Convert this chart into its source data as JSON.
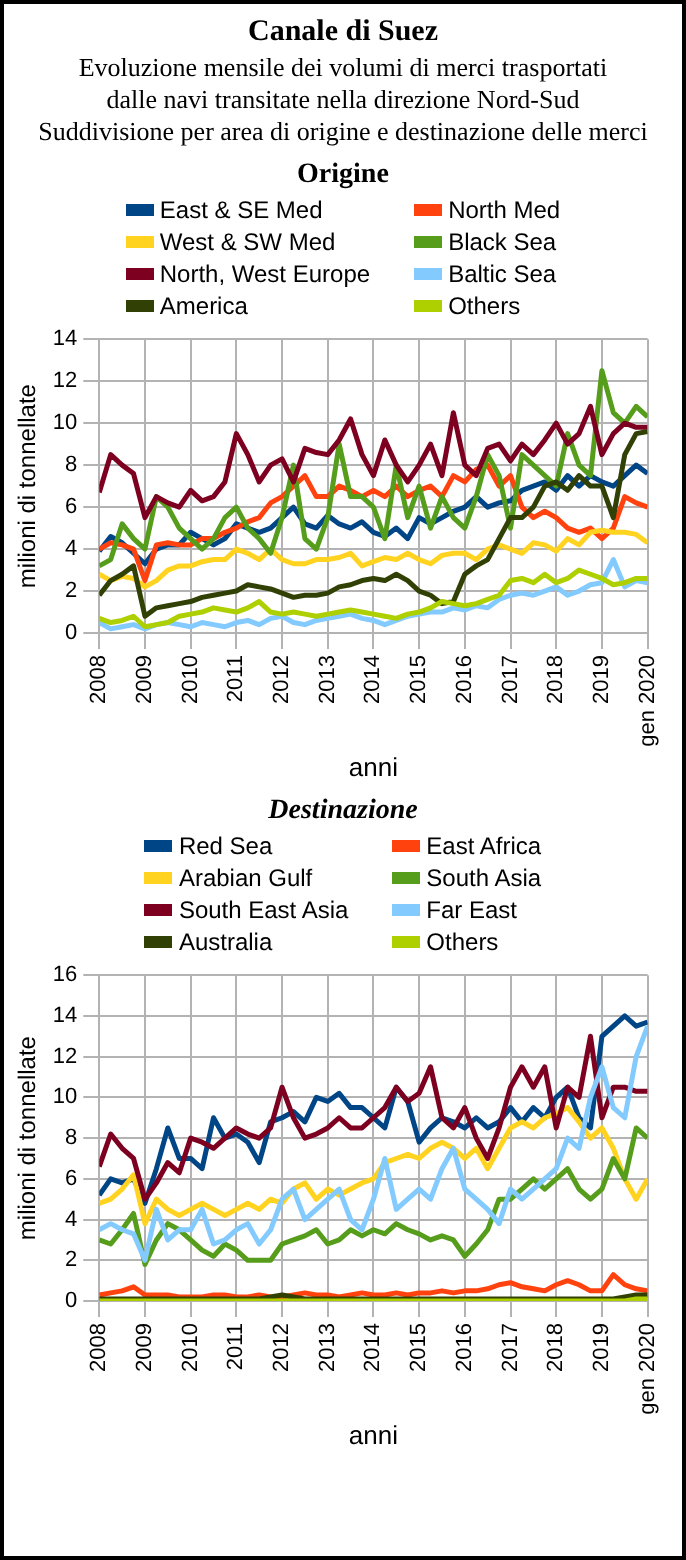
{
  "chart_data": [
    {
      "type": "line",
      "title": "Canale di Suez",
      "subtitle": "Evoluzione mensile dei volumi di merci trasportati\ndalle navi transitate nella direzione Nord-Sud\nSuddivisione per area di origine e destinazione delle merci",
      "legend_title": "Origine",
      "xlabel": "anni",
      "ylabel": "milioni di tonnellate",
      "legend": "top",
      "grid": true,
      "marker": "none",
      "line_style": "solid",
      "x": [
        "2008-01",
        "2008-04",
        "2008-07",
        "2008-10",
        "2009-01",
        "2009-04",
        "2009-07",
        "2009-10",
        "2010-01",
        "2010-04",
        "2010-07",
        "2010-10",
        "2011-01",
        "2011-04",
        "2011-07",
        "2011-10",
        "2012-01",
        "2012-04",
        "2012-07",
        "2012-10",
        "2013-01",
        "2013-04",
        "2013-07",
        "2013-10",
        "2014-01",
        "2014-04",
        "2014-07",
        "2014-10",
        "2015-01",
        "2015-04",
        "2015-07",
        "2015-10",
        "2016-01",
        "2016-04",
        "2016-07",
        "2016-10",
        "2017-01",
        "2017-04",
        "2017-07",
        "2017-10",
        "2018-01",
        "2018-04",
        "2018-07",
        "2018-10",
        "2019-01",
        "2019-04",
        "2019-07",
        "2019-10",
        "2020-01"
      ],
      "xlim": [
        "2008-01",
        "2020-01"
      ],
      "xticks": [
        {
          "value": "2008-01",
          "label": "2008"
        },
        {
          "value": "2009-01",
          "label": "2009"
        },
        {
          "value": "2010-01",
          "label": "2010"
        },
        {
          "value": "2011-01",
          "label": "2011"
        },
        {
          "value": "2012-01",
          "label": "2012"
        },
        {
          "value": "2013-01",
          "label": "2013"
        },
        {
          "value": "2014-01",
          "label": "2014"
        },
        {
          "value": "2015-01",
          "label": "2015"
        },
        {
          "value": "2016-01",
          "label": "2016"
        },
        {
          "value": "2017-01",
          "label": "2017"
        },
        {
          "value": "2018-01",
          "label": "2018"
        },
        {
          "value": "2019-01",
          "label": "2019"
        },
        {
          "value": "2020-01",
          "label": "gen 2020"
        }
      ],
      "ylim": [
        0,
        14
      ],
      "yticks": [
        0,
        2,
        4,
        6,
        8,
        10,
        12,
        14
      ],
      "series": [
        {
          "name": "East & SE Med",
          "color": "#004586",
          "values": [
            3.9,
            4.6,
            4.3,
            3.8,
            3.3,
            4.0,
            4.2,
            4.2,
            4.8,
            4.5,
            4.2,
            4.5,
            5.2,
            5.0,
            4.8,
            5.0,
            5.5,
            6.0,
            5.2,
            5.0,
            5.6,
            5.2,
            5.0,
            5.3,
            4.8,
            4.6,
            5.0,
            4.5,
            5.5,
            5.2,
            5.5,
            5.8,
            6.0,
            6.5,
            6.0,
            6.2,
            6.3,
            6.8,
            7.0,
            7.2,
            6.8,
            7.5,
            7.0,
            7.5,
            7.2,
            7.0,
            7.5,
            8.0,
            7.6
          ]
        },
        {
          "name": "North Med",
          "color": "#ff420e",
          "values": [
            4.0,
            4.3,
            4.2,
            4.0,
            2.5,
            4.2,
            4.3,
            4.2,
            4.2,
            4.5,
            4.5,
            4.8,
            5.0,
            5.3,
            5.5,
            6.2,
            6.5,
            7.0,
            7.5,
            6.5,
            6.5,
            7.0,
            6.8,
            6.5,
            6.8,
            6.5,
            7.0,
            6.5,
            6.8,
            7.0,
            6.5,
            7.5,
            7.2,
            7.8,
            8.0,
            7.0,
            7.5,
            6.0,
            5.5,
            5.8,
            5.5,
            5.0,
            4.8,
            5.0,
            4.5,
            5.0,
            6.5,
            6.2,
            6.0
          ]
        },
        {
          "name": "West & SW Med",
          "color": "#ffd320",
          "values": [
            2.8,
            2.5,
            2.7,
            2.6,
            2.2,
            2.5,
            3.0,
            3.2,
            3.2,
            3.4,
            3.5,
            3.5,
            4.0,
            3.8,
            3.5,
            4.0,
            3.5,
            3.3,
            3.3,
            3.5,
            3.5,
            3.6,
            3.8,
            3.2,
            3.4,
            3.6,
            3.5,
            3.8,
            3.5,
            3.3,
            3.7,
            3.8,
            3.8,
            3.5,
            4.0,
            4.2,
            4.0,
            3.8,
            4.3,
            4.2,
            3.9,
            4.5,
            4.2,
            4.8,
            4.9,
            4.8,
            4.8,
            4.7,
            4.3
          ]
        },
        {
          "name": "Black Sea",
          "color": "#579d1c",
          "values": [
            3.2,
            3.5,
            5.2,
            4.5,
            4.0,
            6.5,
            6.0,
            5.0,
            4.5,
            4.0,
            4.5,
            5.5,
            6.0,
            5.0,
            4.5,
            3.8,
            5.5,
            8.0,
            4.5,
            4.0,
            5.5,
            9.0,
            6.5,
            6.5,
            6.0,
            4.5,
            8.0,
            5.5,
            7.0,
            5.0,
            6.5,
            5.5,
            5.0,
            6.5,
            8.5,
            7.5,
            5.0,
            8.5,
            8.0,
            7.5,
            7.0,
            9.5,
            8.0,
            7.5,
            12.5,
            10.5,
            10.0,
            10.8,
            10.3
          ]
        },
        {
          "name": "North, West Europe",
          "color": "#7e0021",
          "values": [
            6.7,
            8.5,
            8.0,
            7.6,
            5.5,
            6.5,
            6.2,
            6.0,
            6.8,
            6.3,
            6.5,
            7.2,
            9.5,
            8.5,
            7.2,
            8.0,
            8.3,
            7.2,
            8.8,
            8.6,
            8.5,
            9.2,
            10.2,
            8.5,
            7.5,
            9.2,
            8.0,
            7.2,
            8.0,
            9.0,
            7.5,
            10.5,
            8.0,
            7.5,
            8.8,
            9.0,
            8.2,
            9.0,
            8.5,
            9.2,
            10.0,
            9.0,
            9.5,
            10.8,
            8.5,
            9.5,
            10.0,
            9.8,
            9.8
          ]
        },
        {
          "name": "Baltic Sea",
          "color": "#83caff",
          "values": [
            0.5,
            0.2,
            0.3,
            0.4,
            0.2,
            0.4,
            0.5,
            0.4,
            0.3,
            0.5,
            0.4,
            0.3,
            0.5,
            0.6,
            0.4,
            0.7,
            0.8,
            0.5,
            0.4,
            0.6,
            0.7,
            0.8,
            0.9,
            0.7,
            0.6,
            0.4,
            0.6,
            0.8,
            0.9,
            1.0,
            1.0,
            1.2,
            1.1,
            1.3,
            1.2,
            1.6,
            1.8,
            1.9,
            1.8,
            2.0,
            2.2,
            1.8,
            2.0,
            2.3,
            2.4,
            3.5,
            2.2,
            2.5,
            2.4
          ]
        },
        {
          "name": "America",
          "color": "#314004",
          "values": [
            1.8,
            2.5,
            2.8,
            3.2,
            0.8,
            1.2,
            1.3,
            1.4,
            1.5,
            1.7,
            1.8,
            1.9,
            2.0,
            2.3,
            2.2,
            2.1,
            1.9,
            1.7,
            1.8,
            1.8,
            1.9,
            2.2,
            2.3,
            2.5,
            2.6,
            2.5,
            2.8,
            2.5,
            2.0,
            1.8,
            1.4,
            1.5,
            2.8,
            3.2,
            3.5,
            4.5,
            5.5,
            5.5,
            6.0,
            7.0,
            7.2,
            6.8,
            7.5,
            7.0,
            7.0,
            5.5,
            8.5,
            9.5,
            9.6
          ]
        },
        {
          "name": "Others",
          "color": "#aecf00",
          "values": [
            0.7,
            0.5,
            0.6,
            0.8,
            0.3,
            0.4,
            0.5,
            0.8,
            0.9,
            1.0,
            1.2,
            1.1,
            1.0,
            1.2,
            1.5,
            1.0,
            0.9,
            1.0,
            0.9,
            0.8,
            0.9,
            1.0,
            1.1,
            1.0,
            0.9,
            0.8,
            0.7,
            0.9,
            1.0,
            1.2,
            1.5,
            1.4,
            1.3,
            1.4,
            1.6,
            1.8,
            2.5,
            2.6,
            2.4,
            2.8,
            2.4,
            2.6,
            3.0,
            2.8,
            2.6,
            2.3,
            2.4,
            2.6,
            2.6
          ]
        }
      ]
    },
    {
      "type": "line",
      "legend_title": "Destinazione",
      "xlabel": "anni",
      "ylabel": "milioni di tonnellate",
      "legend": "top",
      "grid": true,
      "marker": "none",
      "line_style": "solid",
      "x": [
        "2008-01",
        "2008-04",
        "2008-07",
        "2008-10",
        "2009-01",
        "2009-04",
        "2009-07",
        "2009-10",
        "2010-01",
        "2010-04",
        "2010-07",
        "2010-10",
        "2011-01",
        "2011-04",
        "2011-07",
        "2011-10",
        "2012-01",
        "2012-04",
        "2012-07",
        "2012-10",
        "2013-01",
        "2013-04",
        "2013-07",
        "2013-10",
        "2014-01",
        "2014-04",
        "2014-07",
        "2014-10",
        "2015-01",
        "2015-04",
        "2015-07",
        "2015-10",
        "2016-01",
        "2016-04",
        "2016-07",
        "2016-10",
        "2017-01",
        "2017-04",
        "2017-07",
        "2017-10",
        "2018-01",
        "2018-04",
        "2018-07",
        "2018-10",
        "2019-01",
        "2019-04",
        "2019-07",
        "2019-10",
        "2020-01"
      ],
      "xlim": [
        "2008-01",
        "2020-01"
      ],
      "xticks": [
        {
          "value": "2008-01",
          "label": "2008"
        },
        {
          "value": "2009-01",
          "label": "2009"
        },
        {
          "value": "2010-01",
          "label": "2010"
        },
        {
          "value": "2011-01",
          "label": "2011"
        },
        {
          "value": "2012-01",
          "label": "2012"
        },
        {
          "value": "2013-01",
          "label": "2013"
        },
        {
          "value": "2014-01",
          "label": "2014"
        },
        {
          "value": "2015-01",
          "label": "2015"
        },
        {
          "value": "2016-01",
          "label": "2016"
        },
        {
          "value": "2017-01",
          "label": "2017"
        },
        {
          "value": "2018-01",
          "label": "2018"
        },
        {
          "value": "2019-01",
          "label": "2019"
        },
        {
          "value": "2020-01",
          "label": "gen 2020"
        }
      ],
      "ylim": [
        0,
        16
      ],
      "yticks": [
        0,
        2,
        4,
        6,
        8,
        10,
        12,
        14,
        16
      ],
      "series": [
        {
          "name": "Red Sea",
          "color": "#004586",
          "values": [
            5.2,
            6.0,
            5.8,
            6.0,
            4.8,
            6.5,
            8.5,
            7.0,
            7.0,
            6.5,
            9.0,
            8.0,
            8.2,
            7.8,
            6.8,
            8.8,
            9.0,
            9.3,
            8.8,
            10.0,
            9.8,
            10.2,
            9.5,
            9.5,
            9.0,
            8.5,
            10.5,
            9.8,
            7.8,
            8.5,
            9.0,
            8.8,
            8.5,
            9.0,
            8.5,
            8.8,
            9.5,
            8.8,
            9.5,
            9.0,
            10.0,
            10.5,
            9.0,
            8.5,
            13.0,
            13.5,
            14.0,
            13.5,
            13.7
          ]
        },
        {
          "name": "East Africa",
          "color": "#ff420e",
          "values": [
            0.3,
            0.4,
            0.5,
            0.7,
            0.3,
            0.3,
            0.3,
            0.2,
            0.2,
            0.2,
            0.3,
            0.3,
            0.2,
            0.2,
            0.3,
            0.2,
            0.2,
            0.3,
            0.4,
            0.3,
            0.3,
            0.2,
            0.3,
            0.4,
            0.3,
            0.3,
            0.4,
            0.3,
            0.4,
            0.4,
            0.5,
            0.4,
            0.5,
            0.5,
            0.6,
            0.8,
            0.9,
            0.7,
            0.6,
            0.5,
            0.8,
            1.0,
            0.8,
            0.5,
            0.5,
            1.3,
            0.8,
            0.6,
            0.5
          ]
        },
        {
          "name": "Arabian Gulf",
          "color": "#ffd320",
          "values": [
            4.8,
            5.0,
            5.5,
            6.2,
            3.8,
            5.0,
            4.5,
            4.2,
            4.5,
            4.8,
            4.5,
            4.2,
            4.5,
            4.8,
            4.5,
            5.0,
            4.8,
            5.5,
            5.8,
            5.0,
            5.5,
            5.2,
            5.5,
            5.8,
            6.0,
            6.8,
            7.0,
            7.2,
            7.0,
            7.5,
            7.8,
            7.5,
            7.0,
            7.5,
            6.5,
            7.5,
            8.5,
            8.8,
            8.5,
            9.0,
            9.2,
            9.5,
            8.8,
            8.0,
            8.5,
            7.5,
            6.0,
            5.0,
            6.0
          ]
        },
        {
          "name": "South Asia",
          "color": "#579d1c",
          "values": [
            3.0,
            2.8,
            3.5,
            4.3,
            1.8,
            3.0,
            3.8,
            3.5,
            3.0,
            2.5,
            2.2,
            2.8,
            2.5,
            2.0,
            2.0,
            2.0,
            2.8,
            3.0,
            3.2,
            3.5,
            2.8,
            3.0,
            3.5,
            3.2,
            3.5,
            3.3,
            3.8,
            3.5,
            3.3,
            3.0,
            3.2,
            3.0,
            2.2,
            2.8,
            3.5,
            5.0,
            5.0,
            5.5,
            6.0,
            5.5,
            6.0,
            6.5,
            5.5,
            5.0,
            5.5,
            7.0,
            6.0,
            8.5,
            8.0
          ]
        },
        {
          "name": "South East Asia",
          "color": "#7e0021",
          "values": [
            6.6,
            8.2,
            7.5,
            7.0,
            5.0,
            5.8,
            6.8,
            6.3,
            8.0,
            7.8,
            7.5,
            8.0,
            8.5,
            8.2,
            8.0,
            8.5,
            10.5,
            9.0,
            8.0,
            8.2,
            8.5,
            9.0,
            8.5,
            8.5,
            9.0,
            9.5,
            10.5,
            9.8,
            10.2,
            11.5,
            9.0,
            8.5,
            9.5,
            8.0,
            7.0,
            8.5,
            10.5,
            11.5,
            10.5,
            11.5,
            8.5,
            10.5,
            10.0,
            13.0,
            9.0,
            10.5,
            10.5,
            10.3,
            10.3
          ]
        },
        {
          "name": "Far East",
          "color": "#83caff",
          "values": [
            3.5,
            3.8,
            3.5,
            3.3,
            2.0,
            4.5,
            3.0,
            3.5,
            3.5,
            4.5,
            2.8,
            3.0,
            3.5,
            3.8,
            2.8,
            3.5,
            5.0,
            5.5,
            4.0,
            4.5,
            5.0,
            5.5,
            4.0,
            3.5,
            5.0,
            7.0,
            4.5,
            5.0,
            5.5,
            5.0,
            6.5,
            7.5,
            5.5,
            5.0,
            4.5,
            3.8,
            5.5,
            5.0,
            5.5,
            6.0,
            6.5,
            8.0,
            7.5,
            10.0,
            11.5,
            9.5,
            9.0,
            12.0,
            13.5
          ]
        },
        {
          "name": "Australia",
          "color": "#314004",
          "values": [
            0.1,
            0.1,
            0.1,
            0.1,
            0.1,
            0.1,
            0.1,
            0.1,
            0.1,
            0.1,
            0.1,
            0.1,
            0.1,
            0.1,
            0.1,
            0.2,
            0.3,
            0.2,
            0.1,
            0.1,
            0.1,
            0.1,
            0.1,
            0.1,
            0.1,
            0.1,
            0.1,
            0.1,
            0.1,
            0.1,
            0.1,
            0.1,
            0.1,
            0.1,
            0.1,
            0.1,
            0.1,
            0.1,
            0.1,
            0.1,
            0.1,
            0.1,
            0.1,
            0.1,
            0.1,
            0.1,
            0.2,
            0.3,
            0.3
          ]
        },
        {
          "name": "Others",
          "color": "#aecf00",
          "values": [
            0.0,
            0.0,
            0.0,
            0.0,
            0.0,
            0.0,
            0.0,
            0.0,
            0.0,
            0.0,
            0.0,
            0.0,
            0.0,
            0.0,
            0.0,
            0.0,
            0.0,
            0.0,
            0.0,
            0.0,
            0.0,
            0.0,
            0.0,
            0.0,
            0.0,
            0.0,
            0.0,
            0.0,
            0.0,
            0.0,
            0.0,
            0.0,
            0.0,
            0.0,
            0.0,
            0.0,
            0.0,
            0.0,
            0.0,
            0.0,
            0.0,
            0.0,
            0.0,
            0.0,
            0.0,
            0.0,
            0.0,
            0.1,
            0.1
          ]
        }
      ]
    }
  ]
}
